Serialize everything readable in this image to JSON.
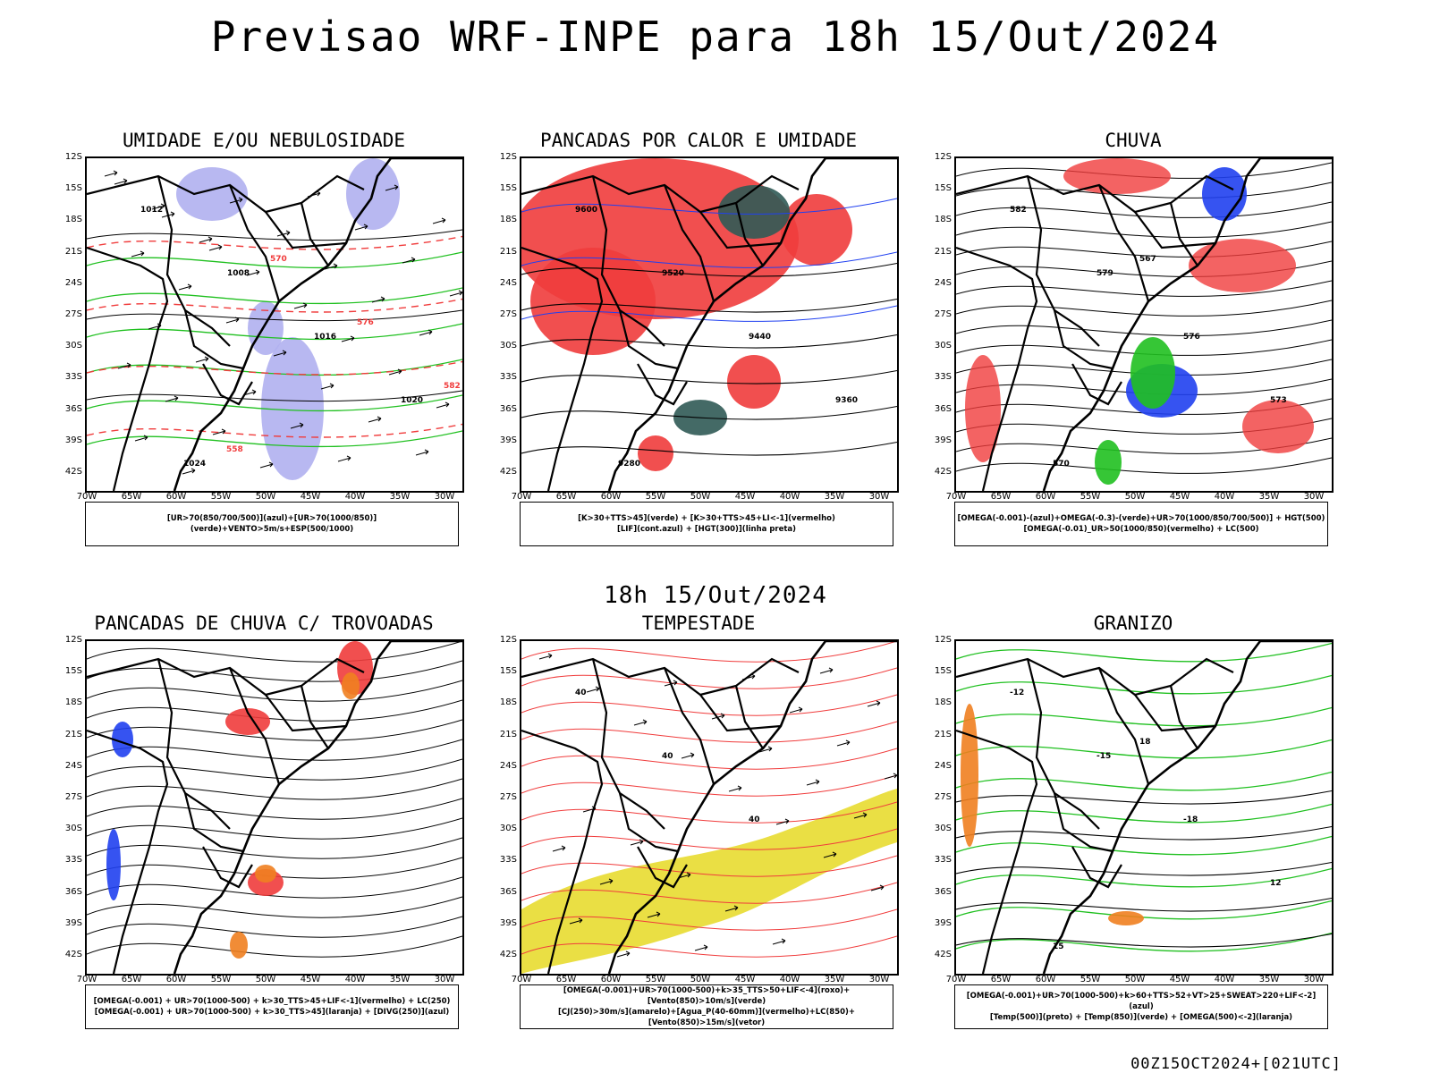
{
  "title": "Previsao WRF-INPE  para 18h 15/Out/2024",
  "subtitle": "18h 15/Out/2024",
  "run_label": "00Z15OCT2024+[021UTC]",
  "lat_labels": [
    "12S",
    "15S",
    "18S",
    "21S",
    "24S",
    "27S",
    "30S",
    "33S",
    "36S",
    "39S",
    "42S"
  ],
  "lon_labels": [
    "70W",
    "65W",
    "60W",
    "55W",
    "50W",
    "45W",
    "40W",
    "35W",
    "30W"
  ],
  "colors": {
    "red": "#f03c3c",
    "blue": "#2040f0",
    "green": "#20c020",
    "lavender": "#b0b0f0",
    "teal": "#305a55",
    "yellow": "#e8dc30",
    "orange": "#f08020"
  },
  "panels": [
    {
      "id": "umidade",
      "title": "UMIDADE E/OU NEBULOSIDADE",
      "legend": [
        "[UR>70(850/700/500)](azul)+[UR>70(1000/850)](verde)+VENTO>5m/s+ESP(500/1000)"
      ],
      "labels": [
        "1012",
        "1008",
        "1016",
        "1020",
        "1024",
        "570",
        "576",
        "582",
        "558"
      ]
    },
    {
      "id": "pancadas-calor",
      "title": "PANCADAS POR CALOR E UMIDADE",
      "legend": [
        "[K>30+TTS>45](verde) + [K>30+TTS>45+LI<-1](vermelho)",
        "[LIF](cont.azul) + [HGT(300)](linha preta)"
      ],
      "labels": [
        "9600",
        "9520",
        "9440",
        "9360",
        "9280"
      ]
    },
    {
      "id": "chuva",
      "title": "CHUVA",
      "legend": [
        "[OMEGA(-0.001)-(azul)+OMEGA(-0.3)-(verde)+UR>70(1000/850/700/500)] + HGT(500)",
        "[OMEGA(-0.01)_UR>50(1000/850)(vermelho) + LC(500)"
      ],
      "labels": [
        "582",
        "579",
        "576",
        "573",
        "570",
        "567"
      ]
    },
    {
      "id": "pancadas-trovoadas",
      "title": "PANCADAS DE CHUVA C/ TROVOADAS",
      "legend": [
        "[OMEGA(-0.001) + UR>70(1000-500) + k>30_TTS>45+LIF<-1](vermelho) + LC(250)",
        "[OMEGA(-0.001) + UR>70(1000-500) + k>30_TTS>45](laranja) + [DIVG(250)](azul)"
      ],
      "labels": []
    },
    {
      "id": "tempestade",
      "title": "TEMPESTADE",
      "legend": [
        "[OMEGA(-0.001)+UR>70(1000-500)+k>35_TTS>50+LIF<-4](roxo)+[Vento(850)>10m/s](verde)",
        "[CJ(250)>30m/s](amarelo)+[Agua_P(40-60mm)](vermelho)+LC(850)+[Vento(850)>15m/s](vetor)"
      ],
      "labels": [
        "40",
        "40",
        "40"
      ]
    },
    {
      "id": "granizo",
      "title": "GRANIZO",
      "legend": [
        "[OMEGA(-0.001)+UR>70(1000-500)+k>60+TTS>52+VT>25+SWEAT>220+LIF<-2](azul)",
        "[Temp(500)](preto) + [Temp(850)](verde) + [OMEGA(500)<-2](laranja)"
      ],
      "labels": [
        "-12",
        "-15",
        "-18",
        "12",
        "15",
        "18"
      ]
    }
  ]
}
